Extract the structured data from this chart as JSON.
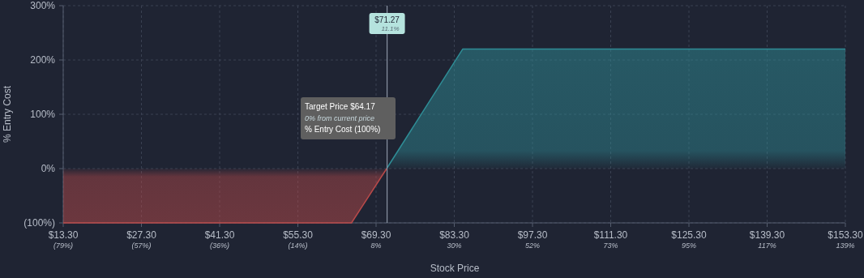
{
  "chart_data": {
    "type": "area",
    "xlabel": "Stock Price",
    "ylabel": "% Entry Cost",
    "x": [
      13.3,
      64.9,
      71.2,
      84.8,
      153.3
    ],
    "series": [
      {
        "color": "#b84a4a",
        "values": [
          -100,
          -100,
          0,
          null,
          null
        ]
      },
      {
        "color": "#2f8d96",
        "values": [
          null,
          null,
          0,
          220,
          220
        ]
      }
    ],
    "xlim": [
      13.3,
      153.3
    ],
    "xticks": [
      {
        "value": 13.3,
        "label": "$13.30"
      },
      {
        "value": 27.3,
        "label": "$27.30"
      },
      {
        "value": 41.3,
        "label": "$41.30"
      },
      {
        "value": 55.3,
        "label": "$55.30"
      },
      {
        "value": 69.3,
        "label": "$69.30"
      },
      {
        "value": 83.3,
        "label": "$83.30"
      },
      {
        "value": 97.3,
        "label": "$97.30"
      },
      {
        "value": 111.3,
        "label": "$111.30"
      },
      {
        "value": 125.3,
        "label": "$125.30"
      },
      {
        "value": 139.3,
        "label": "$139.30"
      },
      {
        "value": 153.3,
        "label": "$153.30"
      }
    ],
    "ylim": [
      -100,
      300
    ],
    "yticks": [
      {
        "value": -100,
        "label": "(100%)"
      },
      {
        "value": 0,
        "label": "0%"
      },
      {
        "value": 100,
        "label": "100%"
      },
      {
        "value": 200,
        "label": "200%"
      },
      {
        "value": 300,
        "label": "300%"
      }
    ],
    "grid": true,
    "ref_lines": [
      {
        "axis": "x",
        "value": 71.27,
        "label": "$71.27\n11.1%",
        "color": "#8a93a3"
      }
    ],
    "x2lim": [
      -79.27,
      138.9
    ],
    "x2ticks": [
      {
        "value": -79.27,
        "label": "(79%)"
      },
      {
        "value": -57.46,
        "label": "(57%)"
      },
      {
        "value": -35.64,
        "label": "(36%)"
      },
      {
        "value": -13.82,
        "label": "(14%)"
      },
      {
        "value": 7.99,
        "label": "8%"
      },
      {
        "value": 29.81,
        "label": "30%"
      },
      {
        "value": 51.63,
        "label": "52%"
      },
      {
        "value": 73.45,
        "label": "73%"
      },
      {
        "value": 95.26,
        "label": "95%"
      },
      {
        "value": 117.08,
        "label": "117%"
      },
      {
        "value": 138.9,
        "label": "139%"
      }
    ],
    "annotations": [
      "Target Price $64.17\n0% from current price\n% Entry Cost (100%)"
    ]
  }
}
